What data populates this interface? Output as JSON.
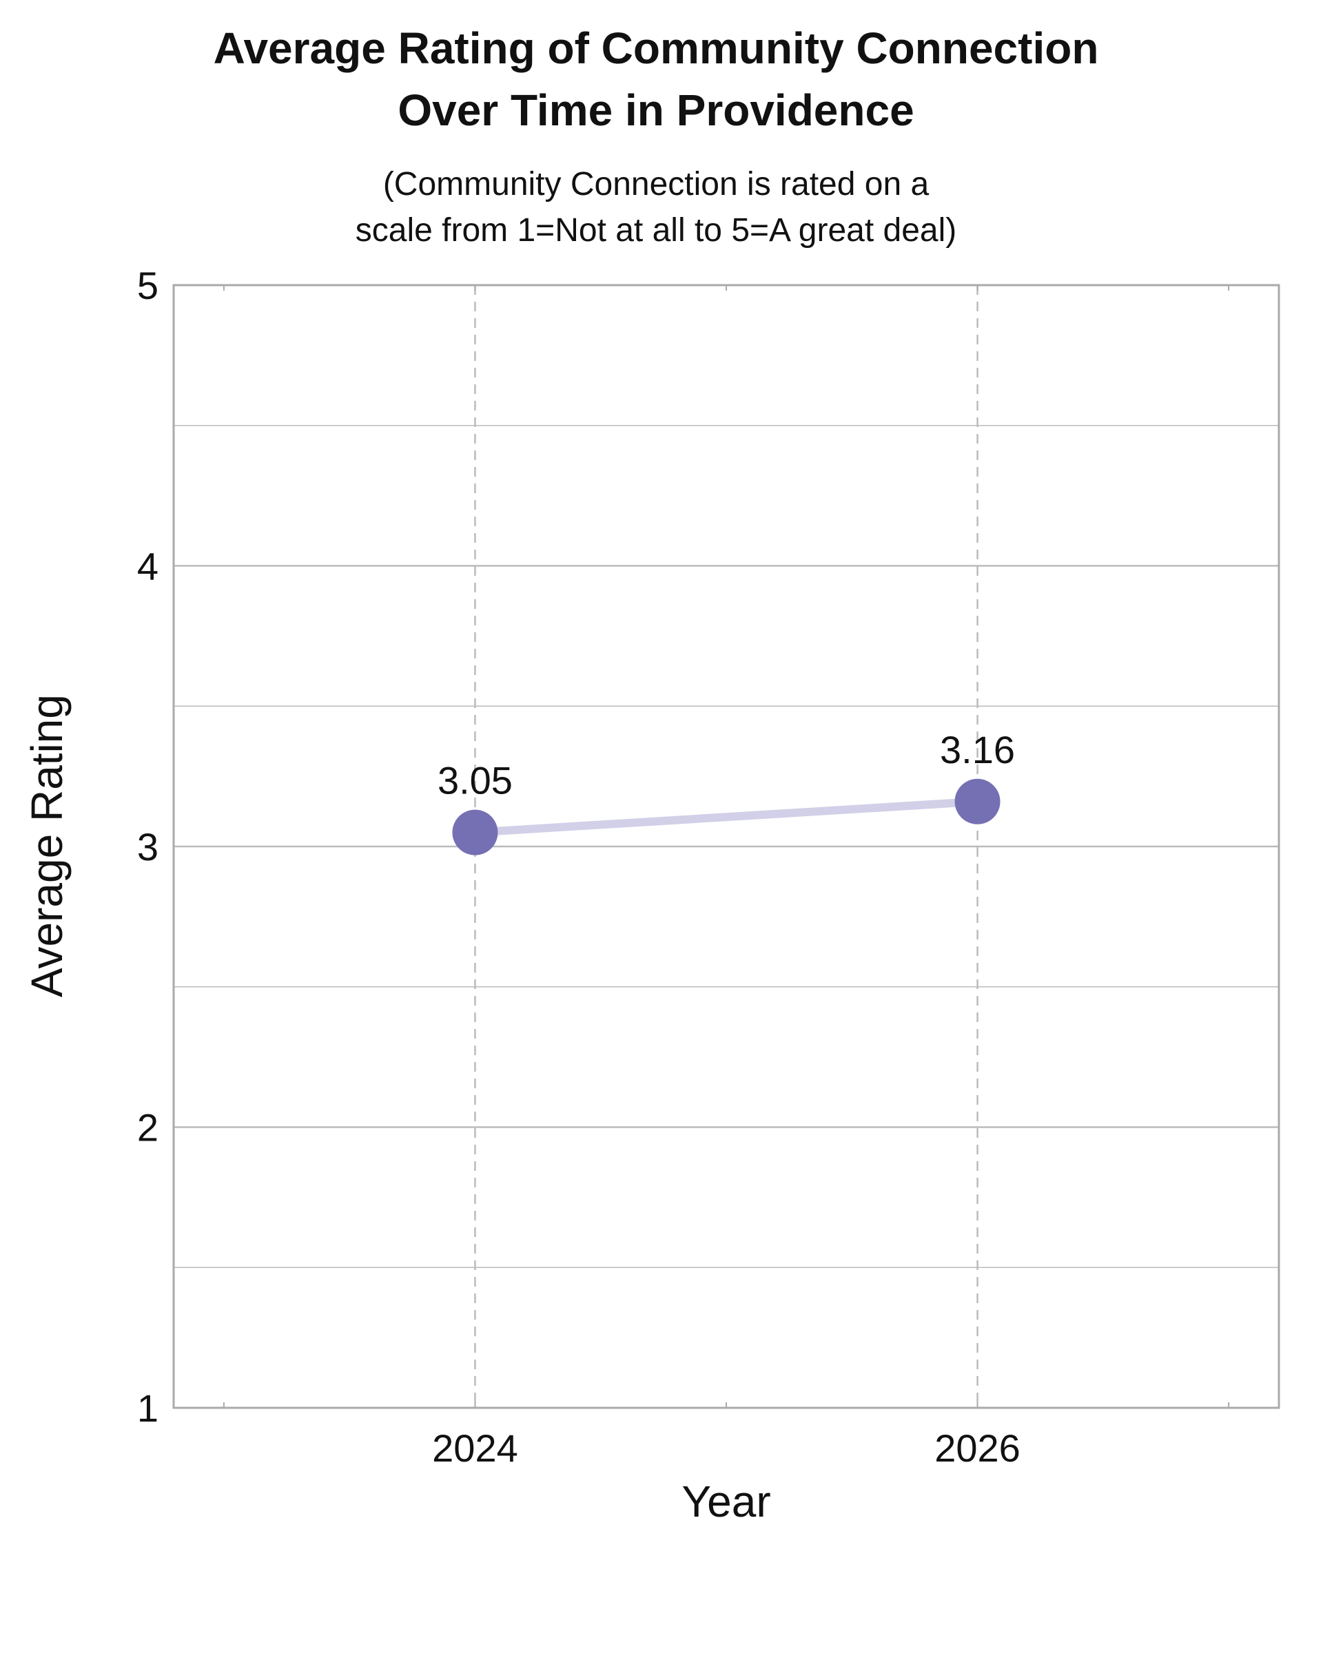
{
  "chart_data": {
    "type": "line",
    "title_lines": [
      "Average Rating of Community Connection",
      "Over Time in Providence"
    ],
    "subtitle_lines": [
      "(Community Connection is rated on a",
      "scale from 1=Not at all to 5=A great deal)"
    ],
    "xlabel": "Year",
    "ylabel": "Average Rating",
    "x": [
      2024,
      2026
    ],
    "x_tick_labels": [
      "2024",
      "2026"
    ],
    "xlim": [
      2022.8,
      2027.2
    ],
    "y_ticks": [
      1,
      2,
      3,
      4,
      5
    ],
    "y_tick_labels": [
      "1",
      "2",
      "3",
      "4",
      "5"
    ],
    "ylim": [
      1,
      5
    ],
    "grid": true,
    "series": [
      {
        "values": [
          3.05,
          3.16
        ],
        "data_labels": [
          "3.05",
          "3.16"
        ],
        "marker_color": "#7570b3",
        "line_color": "#d2d0e8"
      }
    ],
    "frame_color": "#aaaaaa",
    "grid_color": "#bbbbbb"
  }
}
